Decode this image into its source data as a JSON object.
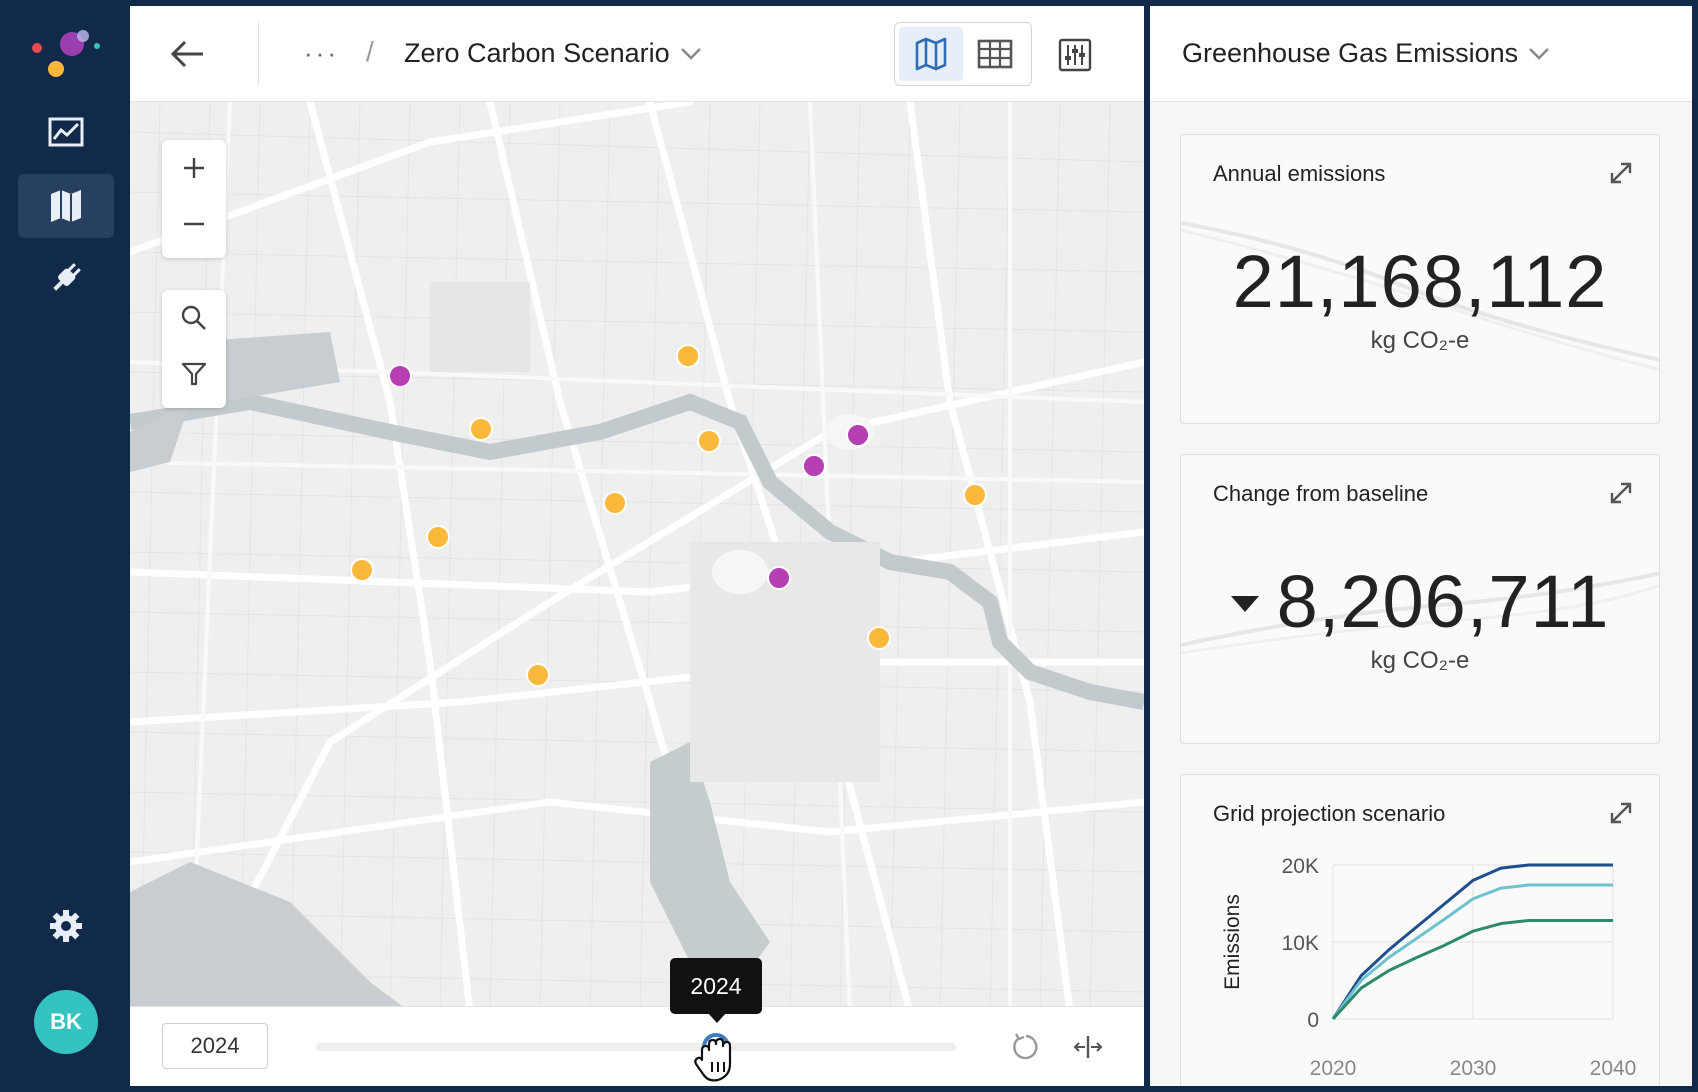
{
  "nav": {
    "items": [
      {
        "name": "trends",
        "icon": "line-chart-icon"
      },
      {
        "name": "map",
        "icon": "map-icon"
      },
      {
        "name": "integrations",
        "icon": "plug-icon"
      }
    ],
    "settings_icon": "gear-icon",
    "user_initials": "BK"
  },
  "header": {
    "breadcrumb_more": "···",
    "breadcrumb_separator": "/",
    "scenario_title": "Zero Carbon Scenario",
    "views": [
      "map-view",
      "table-view"
    ],
    "active_view": "map-view"
  },
  "map": {
    "markers": [
      {
        "color": "purple"
      },
      {
        "color": "yellow"
      },
      {
        "color": "yellow"
      },
      {
        "color": "yellow"
      },
      {
        "color": "purple"
      },
      {
        "color": "purple"
      },
      {
        "color": "yellow"
      },
      {
        "color": "yellow"
      },
      {
        "color": "yellow"
      },
      {
        "color": "yellow"
      },
      {
        "color": "purple"
      },
      {
        "color": "yellow"
      },
      {
        "color": "yellow"
      }
    ],
    "marker_colors": {
      "yellow": "#fbb93b",
      "purple": "#b53fb3"
    }
  },
  "timeline": {
    "year_input": "2024",
    "tooltip": "2024",
    "progress": 0.66
  },
  "panel": {
    "title": "Greenhouse Gas Emissions",
    "cards": {
      "annual": {
        "title": "Annual emissions",
        "value": "21,168,112",
        "unit": "kg CO₂-e"
      },
      "change": {
        "title": "Change from baseline",
        "value": "8,206,711",
        "unit": "kg CO₂-e",
        "direction": "down"
      },
      "grid": {
        "title": "Grid projection scenario"
      }
    }
  },
  "chart_data": {
    "type": "line",
    "title": "Grid projection scenario",
    "xlabel": "",
    "ylabel": "Emissions",
    "x": [
      2020,
      2022,
      2024,
      2026,
      2028,
      2030,
      2032,
      2034,
      2040
    ],
    "series": [
      {
        "color": "#1f4e8c",
        "values": [
          0,
          5600,
          9000,
          12000,
          15000,
          18000,
          19600,
          20000,
          20000
        ]
      },
      {
        "color": "#6ec2cf",
        "values": [
          0,
          5000,
          8000,
          10500,
          13000,
          15600,
          17000,
          17400,
          17400
        ]
      },
      {
        "color": "#2e8a6a",
        "values": [
          0,
          4000,
          6300,
          8000,
          9600,
          11400,
          12400,
          12800,
          12800
        ]
      }
    ],
    "xticks": [
      "2020",
      "2030",
      "2040"
    ],
    "yticks": [
      "0",
      "10K",
      "20K"
    ],
    "xlim": [
      2020,
      2040
    ],
    "ylim": [
      0,
      20000
    ],
    "grid": true
  }
}
